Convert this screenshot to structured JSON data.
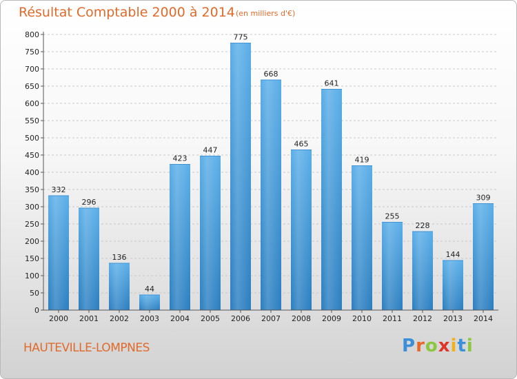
{
  "header": {
    "title": "Résultat Comptable 2000 à 2014",
    "subtitle": "(en milliers d'€)"
  },
  "footer": {
    "city": "HAUTEVILLE-LOMPNES",
    "logo_letters": [
      {
        "ch": "P",
        "color": "#3a8fd8"
      },
      {
        "ch": "r",
        "color": "#e8682a"
      },
      {
        "ch": "o",
        "color": "#8dc63f"
      },
      {
        "ch": "x",
        "color": "#e0342a"
      },
      {
        "ch": "i",
        "color": "#f2b01e"
      },
      {
        "ch": "t",
        "color": "#3a8fd8"
      },
      {
        "ch": "i",
        "color": "#8dc63f"
      }
    ]
  },
  "chart_data": {
    "type": "bar",
    "title": "Résultat Comptable 2000 à 2014",
    "subtitle": "(en milliers d'€)",
    "categories": [
      "2000",
      "2001",
      "2002",
      "2003",
      "2004",
      "2005",
      "2006",
      "2007",
      "2008",
      "2009",
      "2010",
      "2011",
      "2012",
      "2013",
      "2014"
    ],
    "values": [
      332,
      296,
      136,
      44,
      423,
      447,
      775,
      668,
      465,
      641,
      419,
      255,
      228,
      144,
      309
    ],
    "ylim": [
      0,
      800
    ],
    "yticks": [
      0,
      50,
      100,
      150,
      200,
      250,
      300,
      350,
      400,
      450,
      500,
      550,
      600,
      650,
      700,
      750,
      800
    ],
    "grid": true,
    "bar_color_top": "#5aaee8",
    "bar_color_bottom": "#2a7ec0"
  }
}
